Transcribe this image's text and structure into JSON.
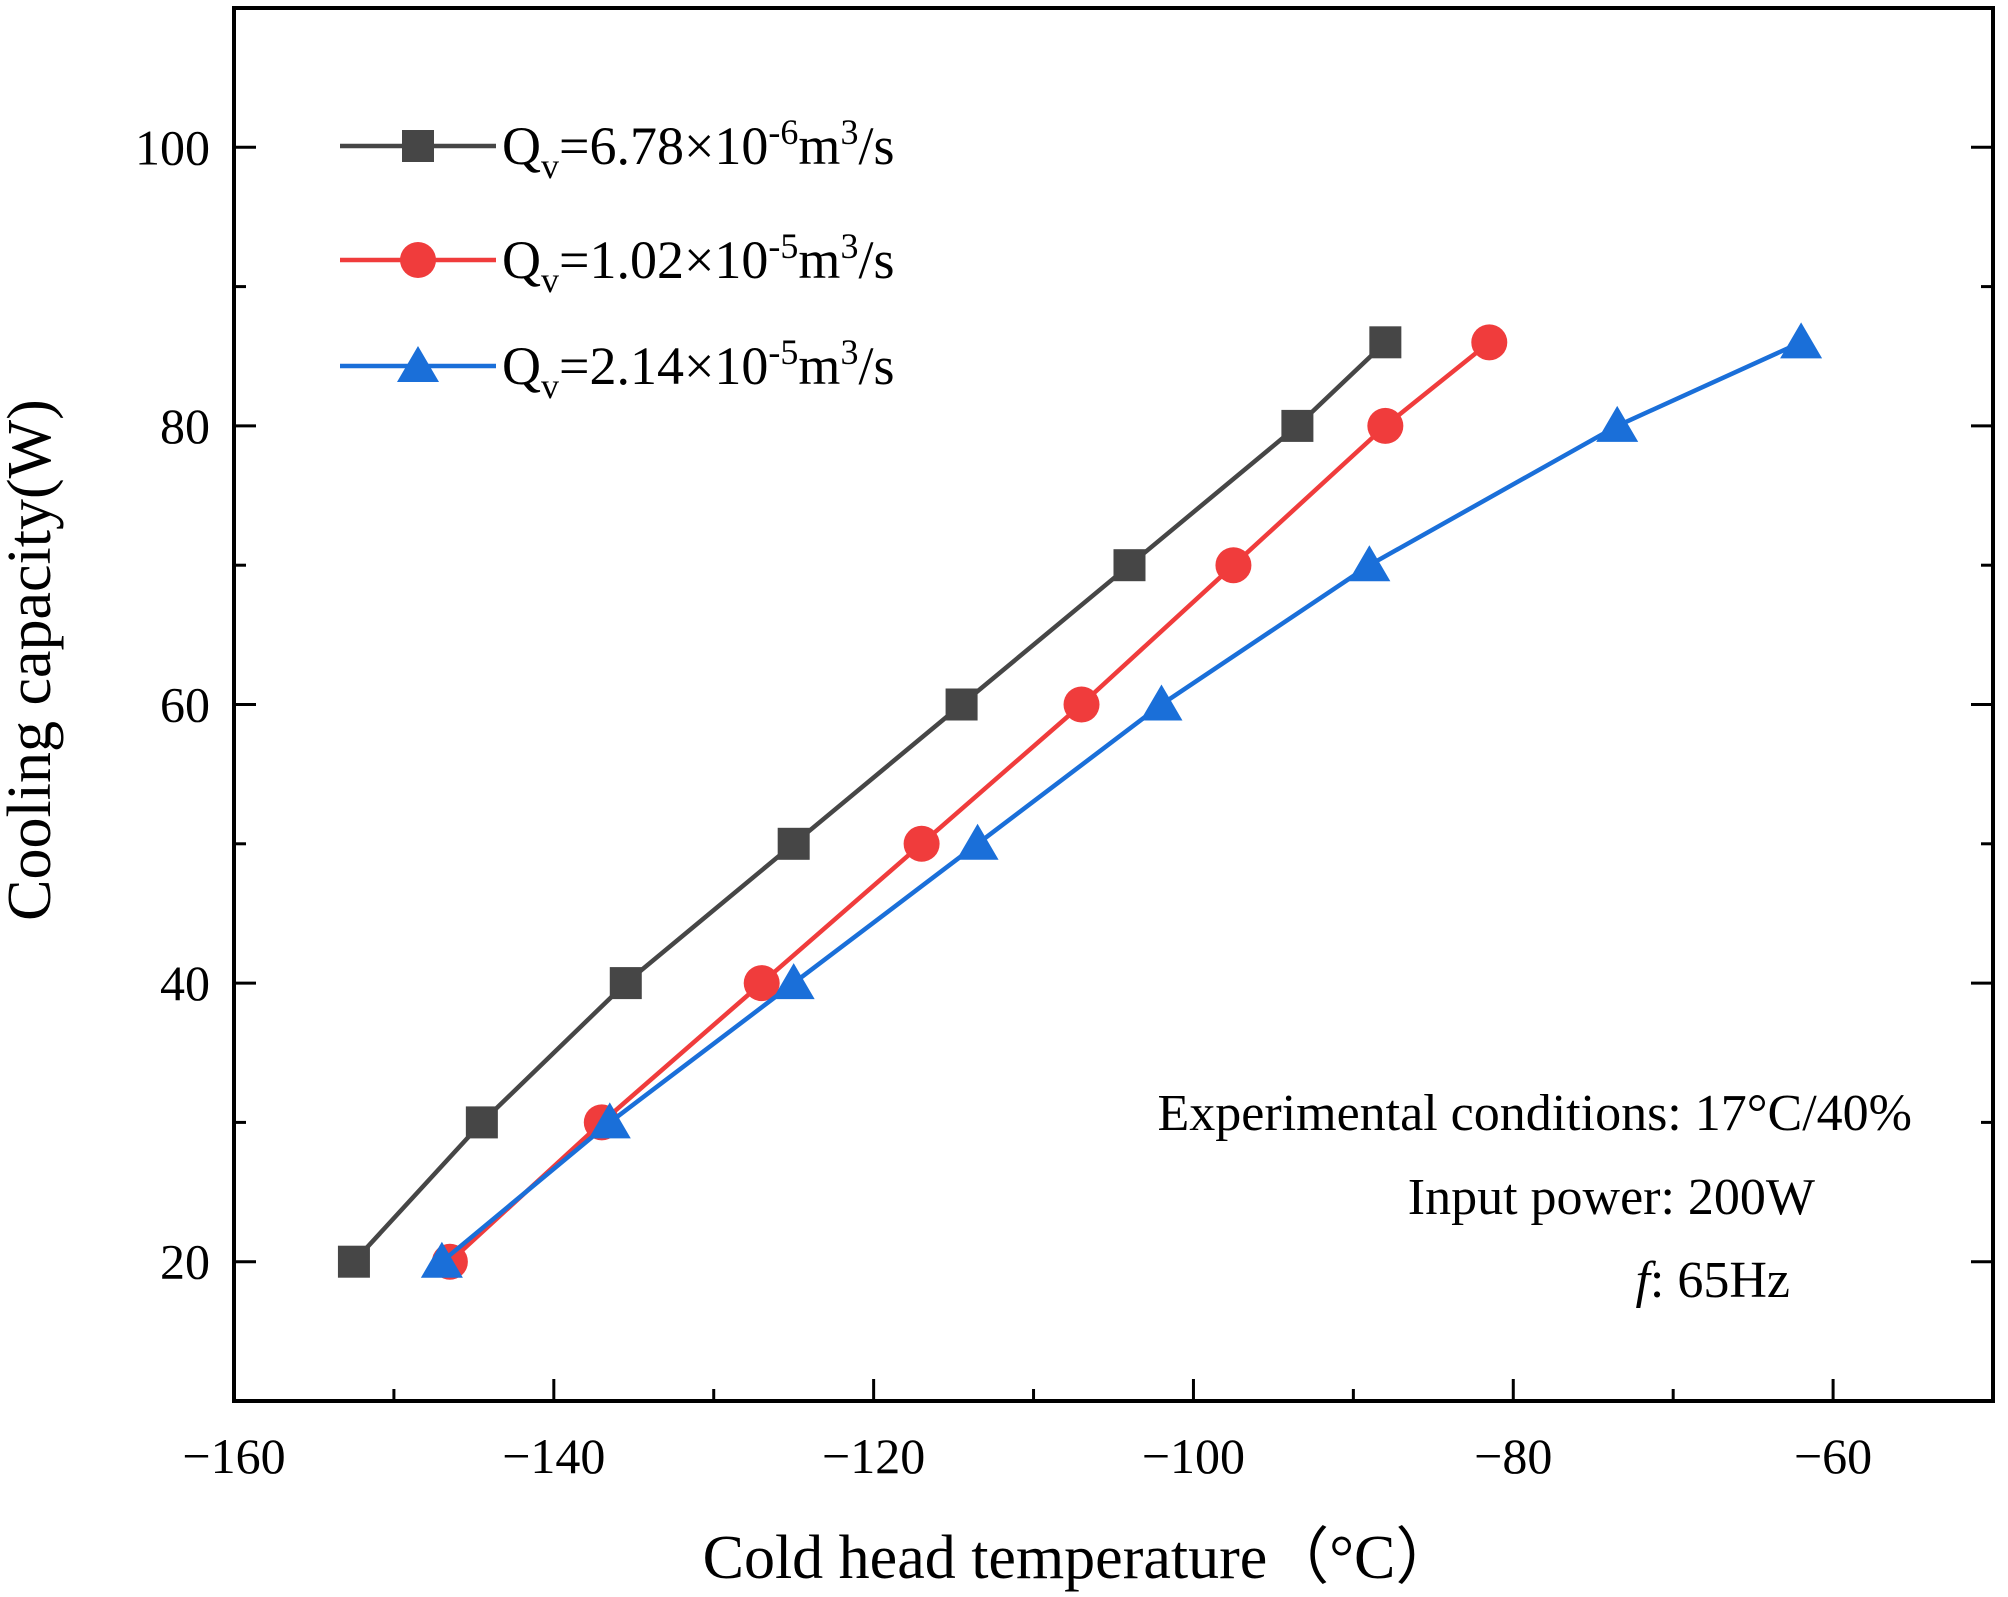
{
  "chart_data": {
    "type": "line",
    "title": "",
    "xlabel": "Cold head temperature（°C）",
    "ylabel": "Cooling capacity(W)",
    "xlim": [
      -160,
      -50
    ],
    "ylim": [
      10,
      110
    ],
    "x_ticks": [
      -160,
      -140,
      -120,
      -100,
      -80,
      -60
    ],
    "x_tick_labels": [
      "−160",
      "−140",
      "−120",
      "−100",
      "−80",
      "−60"
    ],
    "y_ticks": [
      20,
      40,
      60,
      80,
      100
    ],
    "y_tick_labels": [
      "20",
      "40",
      "60",
      "80",
      "100"
    ],
    "grid": false,
    "legend_position": "top-left",
    "series": [
      {
        "name": "Qv=6.78×10-6m3/s",
        "label_parts": {
          "q": "Q",
          "sub": "v",
          "mid": "=6.78×10",
          "exp": "-6",
          "unit": "m",
          "unit_exp": "3",
          "tail": "/s"
        },
        "color": "#464646",
        "marker": "square",
        "x": [
          -152.5,
          -144.5,
          -135.5,
          -125.0,
          -114.5,
          -104.0,
          -93.5,
          -88.0
        ],
        "y": [
          20,
          30,
          40,
          50,
          60,
          70,
          80,
          86
        ]
      },
      {
        "name": "Qv=1.02×10-5m3/s",
        "label_parts": {
          "q": "Q",
          "sub": "v",
          "mid": "=1.02×10",
          "exp": "-5",
          "unit": "m",
          "unit_exp": "3",
          "tail": "/s"
        },
        "color": "#f03c3c",
        "marker": "circle",
        "x": [
          -146.5,
          -137.0,
          -127.0,
          -117.0,
          -107.0,
          -97.5,
          -88.0,
          -81.5
        ],
        "y": [
          20,
          30,
          40,
          50,
          60,
          70,
          80,
          86
        ]
      },
      {
        "name": "Qv=2.14×10-5m3/s",
        "label_parts": {
          "q": "Q",
          "sub": "v",
          "mid": "=2.14×10",
          "exp": "-5",
          "unit": "m",
          "unit_exp": "3",
          "tail": "/s"
        },
        "color": "#1a6fd9",
        "marker": "triangle",
        "x": [
          -147.0,
          -136.5,
          -125.0,
          -113.5,
          -102.0,
          -89.0,
          -73.5,
          -62.0
        ],
        "y": [
          20,
          30,
          40,
          50,
          60,
          70,
          80,
          86
        ]
      }
    ],
    "annotations": {
      "conditions": "Experimental conditions: 17°C/40%",
      "power": "Input power: 200W",
      "freq_symbol": "f",
      "freq_value": ": 65Hz"
    }
  }
}
